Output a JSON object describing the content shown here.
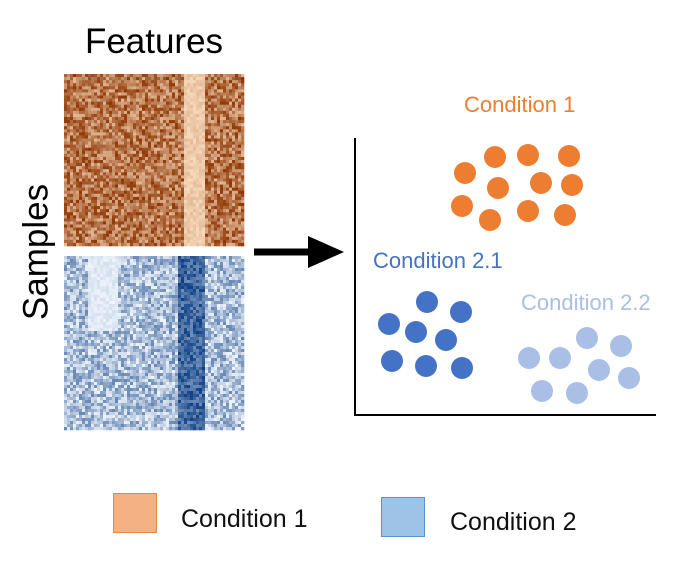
{
  "heatmap": {
    "title": "Features",
    "ylabel": "Samples",
    "groups": [
      {
        "name": "Condition 1",
        "palette": "orange"
      },
      {
        "name": "Condition 2",
        "palette": "blue"
      }
    ]
  },
  "scatter": {
    "clusters": [
      {
        "label": "Condition 1",
        "color": "#ED7D31"
      },
      {
        "label": "Condition 2.1",
        "color": "#4472C4"
      },
      {
        "label": "Condition 2.2",
        "color": "#A9BFE6"
      }
    ]
  },
  "legend": [
    {
      "label": "Condition 1",
      "fill": "#F4B183",
      "stroke": "#E08A4A"
    },
    {
      "label": "Condition 2",
      "fill": "#9DC3E6",
      "stroke": "#5B8FD6"
    }
  ]
}
